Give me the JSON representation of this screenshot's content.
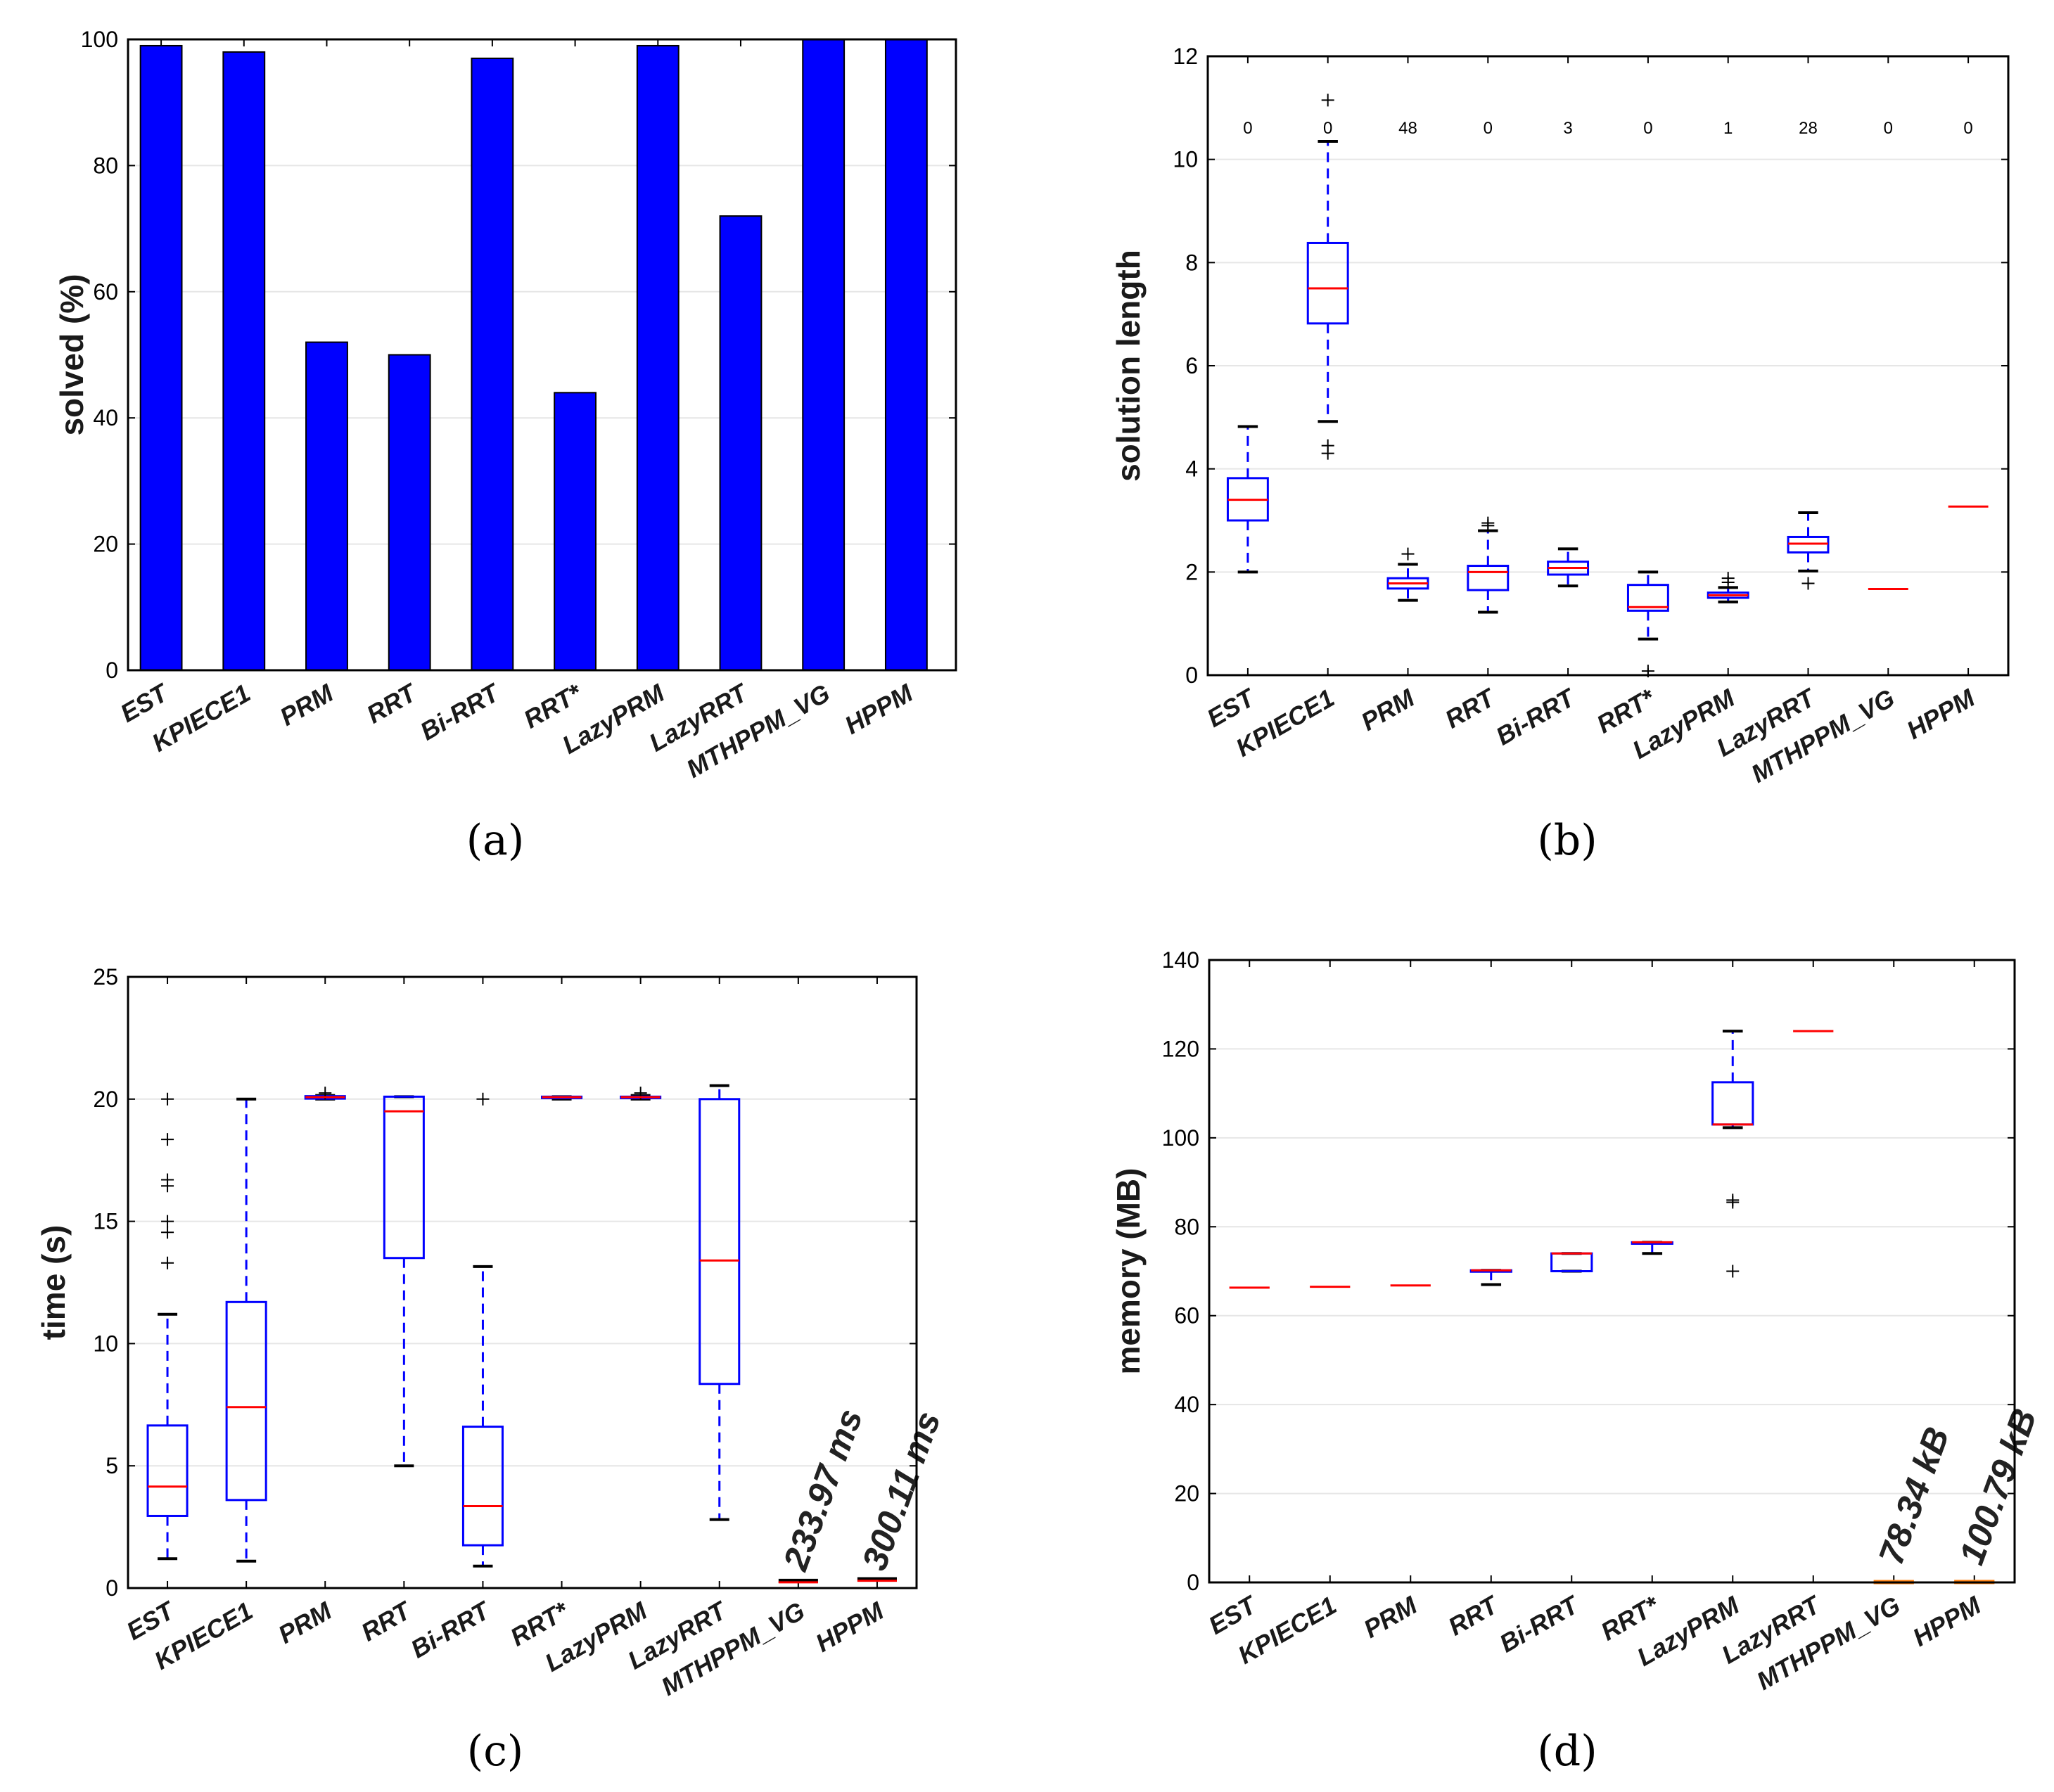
{
  "chart_data": [
    {
      "id": "a",
      "type": "bar",
      "caption": "(a)",
      "ylabel": "solved (%)",
      "ylim": [
        0,
        100
      ],
      "yticks": [
        0,
        20,
        40,
        60,
        80,
        100
      ],
      "grid": true,
      "categories": [
        "EST",
        "KPIECE1",
        "PRM",
        "RRT",
        "Bi-RRT",
        "RRT*",
        "LazyPRM",
        "LazyRRT",
        "MTHPPM_VG",
        "HPPM"
      ],
      "values": [
        99,
        98,
        52,
        50,
        97,
        44,
        99,
        72,
        100,
        100
      ],
      "color": "#0000ff"
    },
    {
      "id": "b",
      "type": "box",
      "caption": "(b)",
      "ylabel": "solution length",
      "ylim": [
        0,
        12
      ],
      "yticks": [
        0,
        2,
        4,
        6,
        8,
        10,
        12
      ],
      "grid": true,
      "categories": [
        "EST",
        "KPIECE1",
        "PRM",
        "RRT",
        "Bi-RRT",
        "RRT*",
        "LazyPRM",
        "LazyRRT",
        "MTHPPM_VG",
        "HPPM"
      ],
      "count_labels": [
        "0",
        "0",
        "48",
        "0",
        "3",
        "0",
        "1",
        "28",
        "0",
        "0"
      ],
      "count_label_y": 10.5,
      "boxes": [
        {
          "wl": 2.0,
          "q1": 3.0,
          "med": 3.4,
          "q3": 3.82,
          "wh": 4.82,
          "out": []
        },
        {
          "wl": 4.92,
          "q1": 6.82,
          "med": 7.5,
          "q3": 8.38,
          "wh": 10.35,
          "out": [
            11.15,
            4.45,
            4.3
          ]
        },
        {
          "wl": 1.45,
          "q1": 1.68,
          "med": 1.78,
          "q3": 1.88,
          "wh": 2.15,
          "out": [
            2.35
          ]
        },
        {
          "wl": 1.22,
          "q1": 1.65,
          "med": 2.0,
          "q3": 2.12,
          "wh": 2.8,
          "out": [
            2.9,
            2.95
          ]
        },
        {
          "wl": 1.73,
          "q1": 1.95,
          "med": 2.08,
          "q3": 2.2,
          "wh": 2.45,
          "out": []
        },
        {
          "wl": 0.7,
          "q1": 1.25,
          "med": 1.32,
          "q3": 1.75,
          "wh": 2.0,
          "out": [
            0.08
          ]
        },
        {
          "wl": 1.42,
          "q1": 1.5,
          "med": 1.55,
          "q3": 1.6,
          "wh": 1.7,
          "out": [
            1.8,
            1.88
          ]
        },
        {
          "wl": 2.02,
          "q1": 2.38,
          "med": 2.55,
          "q3": 2.68,
          "wh": 3.15,
          "out": [
            1.78
          ]
        },
        {
          "med": 1.67
        },
        {
          "med": 3.27
        }
      ]
    },
    {
      "id": "c",
      "type": "box",
      "caption": "(c)",
      "ylabel": "time (s)",
      "ylim": [
        0,
        25
      ],
      "yticks": [
        0,
        5,
        10,
        15,
        20,
        25
      ],
      "grid": true,
      "categories": [
        "EST",
        "KPIECE1",
        "PRM",
        "RRT",
        "Bi-RRT",
        "RRT*",
        "LazyPRM",
        "LazyRRT",
        "MTHPPM_VG",
        "HPPM"
      ],
      "boxes": [
        {
          "wl": 1.2,
          "q1": 2.95,
          "med": 4.15,
          "q3": 6.65,
          "wh": 11.2,
          "out": [
            20.0,
            18.35,
            16.7,
            16.45,
            15.0,
            14.55,
            13.3
          ]
        },
        {
          "wl": 1.1,
          "q1": 3.6,
          "med": 7.4,
          "q3": 11.7,
          "wh": 20.0,
          "out": []
        },
        {
          "wl": 20.0,
          "q1": 20.02,
          "med": 20.08,
          "q3": 20.12,
          "wh": 20.15,
          "out": [
            20.25
          ]
        },
        {
          "wl": 5.0,
          "q1": 13.5,
          "med": 19.5,
          "q3": 20.1,
          "wh": 20.1,
          "out": []
        },
        {
          "wl": 0.9,
          "q1": 1.75,
          "med": 3.35,
          "q3": 6.6,
          "wh": 13.15,
          "out": [
            20.0
          ]
        },
        {
          "wl": 20.0,
          "q1": 20.04,
          "med": 20.08,
          "q3": 20.1,
          "wh": 20.1,
          "out": []
        },
        {
          "wl": 20.0,
          "q1": 20.04,
          "med": 20.08,
          "q3": 20.1,
          "wh": 20.15,
          "out": [
            20.25
          ]
        },
        {
          "wl": 2.8,
          "q1": 8.35,
          "med": 13.4,
          "q3": 20.0,
          "wh": 20.55,
          "out": []
        },
        {
          "med": 0.234,
          "flat": "#000000"
        },
        {
          "med": 0.3,
          "flat": "#000000"
        }
      ],
      "annotations": [
        {
          "category": "MTHPPM_VG",
          "text": "233.97 ms"
        },
        {
          "category": "HPPM",
          "text": "300.11 ms"
        }
      ]
    },
    {
      "id": "d",
      "type": "box",
      "caption": "(d)",
      "ylabel": "memory (MB)",
      "ylim": [
        0,
        140
      ],
      "yticks": [
        0,
        20,
        40,
        60,
        80,
        100,
        120,
        140
      ],
      "grid": true,
      "categories": [
        "EST",
        "KPIECE1",
        "PRM",
        "RRT",
        "Bi-RRT",
        "RRT*",
        "LazyPRM",
        "LazyRRT",
        "MTHPPM_VG",
        "HPPM"
      ],
      "boxes": [
        {
          "med": 66.3
        },
        {
          "med": 66.5
        },
        {
          "med": 66.8
        },
        {
          "wl": 67.0,
          "q1": 70.2,
          "med": 70.2,
          "q3": 70.2,
          "wh": 70.2,
          "out": []
        },
        {
          "wl": 70.0,
          "q1": 70.0,
          "med": 74.0,
          "q3": 74.0,
          "wh": 74.0,
          "out": []
        },
        {
          "wl": 74.0,
          "q1": 76.5,
          "med": 76.5,
          "q3": 76.5,
          "wh": 76.5,
          "out": []
        },
        {
          "wl": 102.3,
          "q1": 103.0,
          "med": 103.0,
          "q3": 112.5,
          "wh": 124.0,
          "out": [
            86.0,
            85.5,
            70.0
          ]
        },
        {
          "med": 124.0
        },
        {
          "med": 0.078,
          "color": "#ff7f0e"
        },
        {
          "med": 0.101,
          "color": "#ff7f0e"
        }
      ],
      "annotations": [
        {
          "category": "MTHPPM_VG",
          "text": "78.34 kB"
        },
        {
          "category": "HPPM",
          "text": "100.79 kB"
        }
      ]
    }
  ]
}
